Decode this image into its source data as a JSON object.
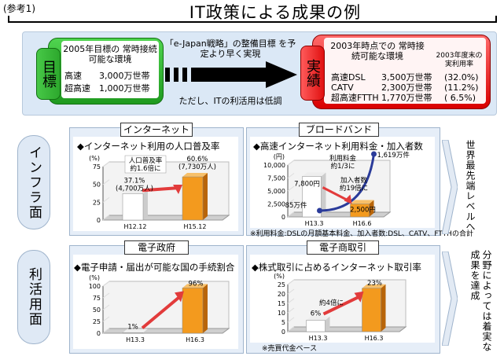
{
  "header": {
    "ref": "(参考1)",
    "title": "IT政策による成果の例"
  },
  "top": {
    "goal_tag": "目標",
    "goal_title": "2005年目標の 常時接続可能な環境",
    "goal_rows": [
      {
        "label": "高速",
        "value": "3,000万世帯"
      },
      {
        "label": "超高速",
        "value": "1,000万世帯"
      }
    ],
    "mid_text": "「e-Japan戦略」の整備目標 を予定より早く実現",
    "mid_text2": "ただし、ITの利活用は低調",
    "result_tag": "実績",
    "result_title": "2003年時点での 常時接続可能な環境",
    "result_note": "2003年度末の実利用率",
    "result_rows": [
      {
        "label": "高速DSL",
        "value": "3,500万世帯",
        "rate": "(32.0%)"
      },
      {
        "label": "CATV",
        "value": "2,300万世帯",
        "rate": "(11.2%)"
      },
      {
        "label": "超高速FTTH",
        "value": "1,770万世帯",
        "rate": "( 6.5%)"
      }
    ]
  },
  "side_labels": {
    "infra": "インフラ面",
    "use": "利活用面"
  },
  "conclusions": {
    "infra": "世界最先端レベルへ",
    "use": "分野によっては着実な成果を達成"
  },
  "chart_data": [
    {
      "type": "bar",
      "tab": "インターネット",
      "title": "◆インターネット利用の人口普及率",
      "yunit": "(%)",
      "yticks": [
        0,
        25,
        50,
        75
      ],
      "ylim": [
        0,
        75
      ],
      "categories": [
        "H12.12",
        "H15.12"
      ],
      "values": [
        37.1,
        60.6
      ],
      "labels": [
        "37.1%",
        "60.6%"
      ],
      "sublabels": [
        "(4,700万人)",
        "(7,730万人)"
      ],
      "annotation": "人口普及率 約1.6倍に"
    },
    {
      "type": "bar",
      "tab": "ブロードバンド",
      "title": "◆高速インターネット利用料金・加入者数",
      "yunit": "(円)",
      "yticks": [
        0,
        2500,
        5000,
        7500,
        10000
      ],
      "ylim": [
        0,
        10000
      ],
      "categories": [
        "H13.3",
        "H16.6"
      ],
      "values": [
        7800,
        2500
      ],
      "labels": [
        "7,800円",
        "2,500円"
      ],
      "subscribers": {
        "values": [
          "85万件",
          "1,619万件"
        ],
        "annotation": "加入者数 約19倍に"
      },
      "annotation": "利用料金 約1/3に",
      "footnote": "※利用料金:DSLの月額基本料金、加入者数:DSL、CATV、FTTHの合計"
    },
    {
      "type": "bar",
      "tab": "電子政府",
      "title": "◆電子申請・届出が可能な国の手続割合",
      "yunit": "(%)",
      "yticks": [
        0,
        25,
        50,
        75,
        100
      ],
      "ylim": [
        0,
        100
      ],
      "categories": [
        "H13.3",
        "H16.3"
      ],
      "values": [
        1,
        96
      ],
      "labels": [
        "1%",
        "96%"
      ]
    },
    {
      "type": "bar",
      "tab": "電子商取引",
      "title": "◆株式取引に占めるインターネット取引率",
      "yunit": "(%)",
      "yticks": [
        0,
        5,
        10,
        15,
        20,
        25
      ],
      "ylim": [
        0,
        25
      ],
      "categories": [
        "H13.3",
        "H16.3"
      ],
      "values": [
        6,
        23
      ],
      "labels": [
        "6%",
        "23%"
      ],
      "annotation": "約4倍に",
      "footnote": "※売買代金ベース"
    }
  ]
}
